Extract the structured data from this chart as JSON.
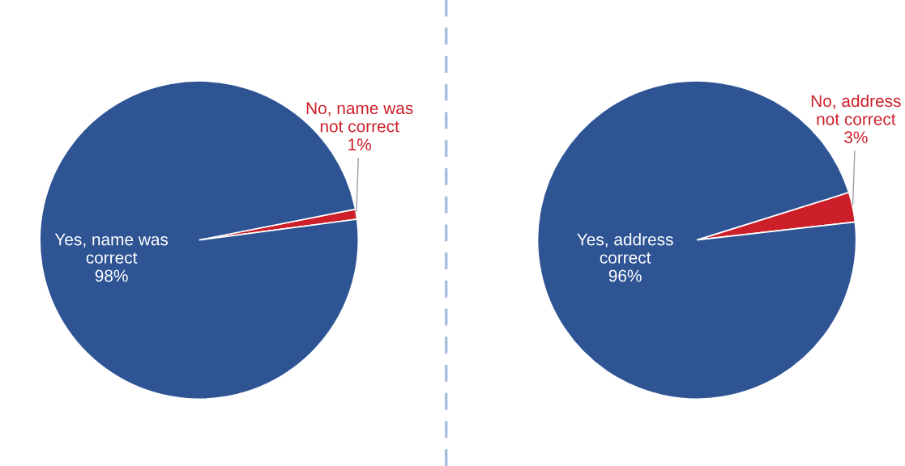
{
  "chart_data": [
    {
      "type": "pie",
      "categories": [
        "No, name was\nnot correct",
        "Yes, name was\ncorrect"
      ],
      "values": [
        1,
        98
      ],
      "colors": [
        "#cc1f2a",
        "#2e5494"
      ],
      "value_labels": [
        "1%",
        "98%"
      ]
    },
    {
      "type": "pie",
      "categories": [
        "No, address\nnot correct",
        "Yes, address\ncorrect"
      ],
      "values": [
        3,
        96
      ],
      "colors": [
        "#cc1f2a",
        "#2e5494"
      ],
      "value_labels": [
        "3%",
        "96%"
      ]
    }
  ]
}
